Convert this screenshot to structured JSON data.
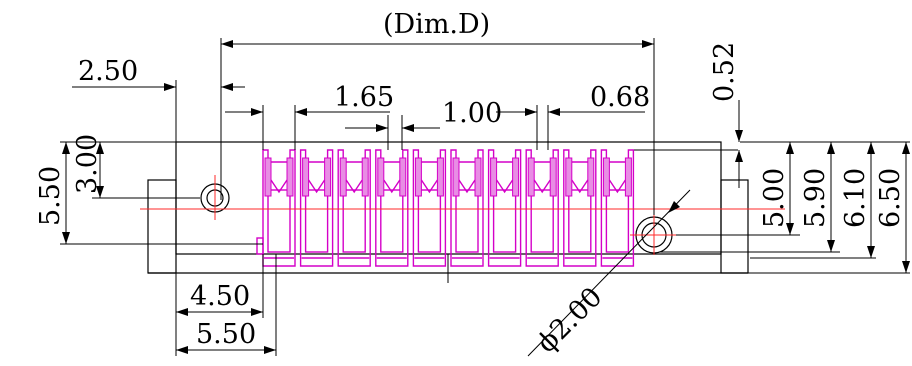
{
  "drawing": {
    "title_dim": "(Dim.D)",
    "dims": {
      "a": "2.50",
      "b": "1.65",
      "c": "1.00",
      "d": "0.68",
      "e": "0.52",
      "f": "5.50",
      "g": "3.00",
      "h": "5.00",
      "i": "5.90",
      "j": "6.10",
      "k": "6.50",
      "l": "4.50",
      "m": "5.50",
      "n": "ϕ2.00"
    },
    "pin_count": 10,
    "colors": {
      "outline": "#000000",
      "centerline": "#ff2a2a",
      "pins": "#d400c8"
    }
  }
}
